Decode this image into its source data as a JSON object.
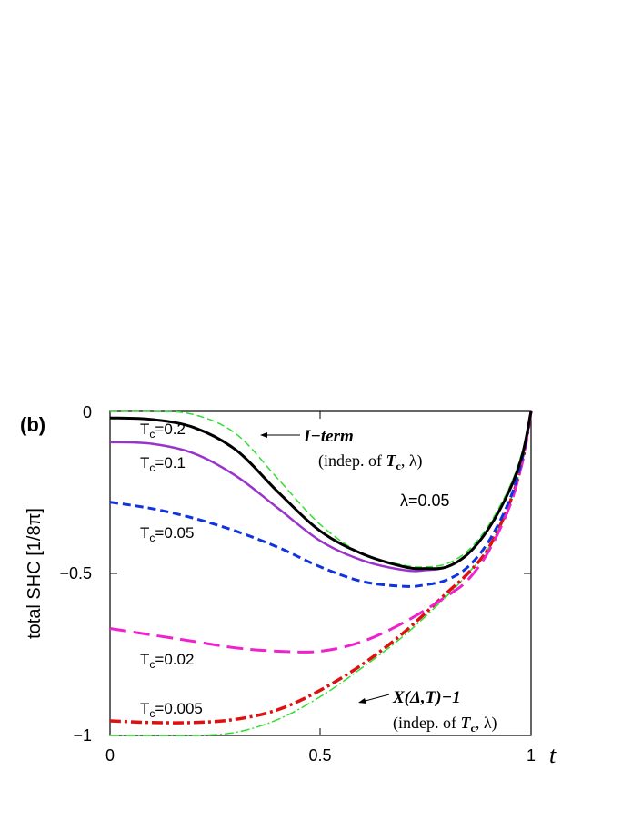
{
  "chart_data": {
    "type": "line",
    "panel_label": "(b)",
    "ylabel": "total SHC [1/8π]",
    "xlabel": "t",
    "xlim": [
      0,
      1
    ],
    "ylim": [
      -1,
      0
    ],
    "x_ticks": [
      "0",
      "0.5",
      "1"
    ],
    "y_ticks": [
      "0",
      "−0.5",
      "−1"
    ],
    "parameter_label": "λ=0.05",
    "series": [
      {
        "name": "Tc=0.2",
        "label_main": "T",
        "label_sub": "c",
        "label_value": "=0.2",
        "color": "#000000",
        "style": "solid",
        "width": 3,
        "points": [
          [
            0,
            -0.02
          ],
          [
            0.1,
            -0.025
          ],
          [
            0.2,
            -0.05
          ],
          [
            0.3,
            -0.12
          ],
          [
            0.4,
            -0.25
          ],
          [
            0.5,
            -0.37
          ],
          [
            0.6,
            -0.44
          ],
          [
            0.7,
            -0.48
          ],
          [
            0.75,
            -0.485
          ],
          [
            0.8,
            -0.48
          ],
          [
            0.85,
            -0.44
          ],
          [
            0.9,
            -0.36
          ],
          [
            0.95,
            -0.24
          ],
          [
            0.98,
            -0.13
          ],
          [
            1.0,
            0.0
          ]
        ]
      },
      {
        "name": "Tc=0.1",
        "label_main": "T",
        "label_sub": "c",
        "label_value": "=0.1",
        "color": "#9933cc",
        "style": "solid",
        "width": 2.5,
        "points": [
          [
            0,
            -0.095
          ],
          [
            0.1,
            -0.1
          ],
          [
            0.2,
            -0.13
          ],
          [
            0.3,
            -0.2
          ],
          [
            0.4,
            -0.3
          ],
          [
            0.5,
            -0.4
          ],
          [
            0.6,
            -0.46
          ],
          [
            0.7,
            -0.49
          ],
          [
            0.75,
            -0.49
          ],
          [
            0.8,
            -0.48
          ],
          [
            0.85,
            -0.44
          ],
          [
            0.9,
            -0.36
          ],
          [
            0.95,
            -0.24
          ],
          [
            0.98,
            -0.13
          ],
          [
            1.0,
            0.0
          ]
        ]
      },
      {
        "name": "Tc=0.05",
        "label_main": "T",
        "label_sub": "c",
        "label_value": "=0.05",
        "color": "#1133dd",
        "style": "dash-short",
        "width": 3,
        "points": [
          [
            0,
            -0.28
          ],
          [
            0.1,
            -0.3
          ],
          [
            0.2,
            -0.33
          ],
          [
            0.3,
            -0.37
          ],
          [
            0.4,
            -0.42
          ],
          [
            0.5,
            -0.48
          ],
          [
            0.6,
            -0.525
          ],
          [
            0.7,
            -0.54
          ],
          [
            0.75,
            -0.535
          ],
          [
            0.8,
            -0.52
          ],
          [
            0.85,
            -0.48
          ],
          [
            0.9,
            -0.4
          ],
          [
            0.95,
            -0.27
          ],
          [
            0.98,
            -0.14
          ],
          [
            1.0,
            0.0
          ]
        ]
      },
      {
        "name": "Tc=0.02",
        "label_main": "T",
        "label_sub": "c",
        "label_value": "=0.02",
        "color": "#ee22cc",
        "style": "dash-long",
        "width": 3,
        "points": [
          [
            0,
            -0.67
          ],
          [
            0.1,
            -0.69
          ],
          [
            0.2,
            -0.71
          ],
          [
            0.3,
            -0.73
          ],
          [
            0.4,
            -0.74
          ],
          [
            0.5,
            -0.74
          ],
          [
            0.6,
            -0.71
          ],
          [
            0.7,
            -0.65
          ],
          [
            0.8,
            -0.57
          ],
          [
            0.85,
            -0.52
          ],
          [
            0.9,
            -0.43
          ],
          [
            0.95,
            -0.29
          ],
          [
            0.98,
            -0.15
          ],
          [
            1.0,
            0.0
          ]
        ]
      },
      {
        "name": "Tc=0.005",
        "label_main": "T",
        "label_sub": "c",
        "label_value": "=0.005",
        "color": "#dd1111",
        "style": "dash-dot",
        "width": 3.5,
        "points": [
          [
            0,
            -0.955
          ],
          [
            0.1,
            -0.96
          ],
          [
            0.2,
            -0.96
          ],
          [
            0.3,
            -0.95
          ],
          [
            0.4,
            -0.92
          ],
          [
            0.5,
            -0.86
          ],
          [
            0.6,
            -0.78
          ],
          [
            0.7,
            -0.68
          ],
          [
            0.8,
            -0.56
          ],
          [
            0.85,
            -0.5
          ],
          [
            0.9,
            -0.42
          ],
          [
            0.95,
            -0.28
          ],
          [
            0.98,
            -0.15
          ],
          [
            1.0,
            0.0
          ]
        ]
      },
      {
        "name": "I-term",
        "color": "#33dd33",
        "style": "dash-thin",
        "width": 1.5,
        "points": [
          [
            0,
            0.0
          ],
          [
            0.1,
            0.0
          ],
          [
            0.2,
            -0.01
          ],
          [
            0.3,
            -0.07
          ],
          [
            0.4,
            -0.21
          ],
          [
            0.5,
            -0.35
          ],
          [
            0.6,
            -0.44
          ],
          [
            0.7,
            -0.475
          ],
          [
            0.75,
            -0.48
          ],
          [
            0.8,
            -0.47
          ],
          [
            0.85,
            -0.43
          ],
          [
            0.9,
            -0.35
          ],
          [
            0.95,
            -0.23
          ],
          [
            0.98,
            -0.12
          ],
          [
            1.0,
            0.0
          ]
        ]
      },
      {
        "name": "X(Δ,T)−1",
        "color": "#33dd33",
        "style": "dash-dot-thin",
        "width": 1.5,
        "points": [
          [
            0,
            -1.0
          ],
          [
            0.1,
            -1.0
          ],
          [
            0.2,
            -1.0
          ],
          [
            0.3,
            -0.99
          ],
          [
            0.4,
            -0.95
          ],
          [
            0.5,
            -0.88
          ],
          [
            0.6,
            -0.79
          ],
          [
            0.7,
            -0.69
          ],
          [
            0.8,
            -0.57
          ],
          [
            0.85,
            -0.5
          ],
          [
            0.9,
            -0.42
          ],
          [
            0.95,
            -0.28
          ],
          [
            0.98,
            -0.15
          ],
          [
            1.0,
            0.0
          ]
        ]
      }
    ],
    "annotations": {
      "iterm_main": "I−term",
      "iterm_note_prefix": "(indep. of ",
      "iterm_note_T": "T",
      "iterm_note_sub": "c",
      "iterm_note_suffix": ", λ)",
      "x_main": "X(Δ,T)−1",
      "x_note_prefix": "(indep. of ",
      "x_note_T": "T",
      "x_note_sub": "c",
      "x_note_suffix": ", λ)"
    }
  }
}
